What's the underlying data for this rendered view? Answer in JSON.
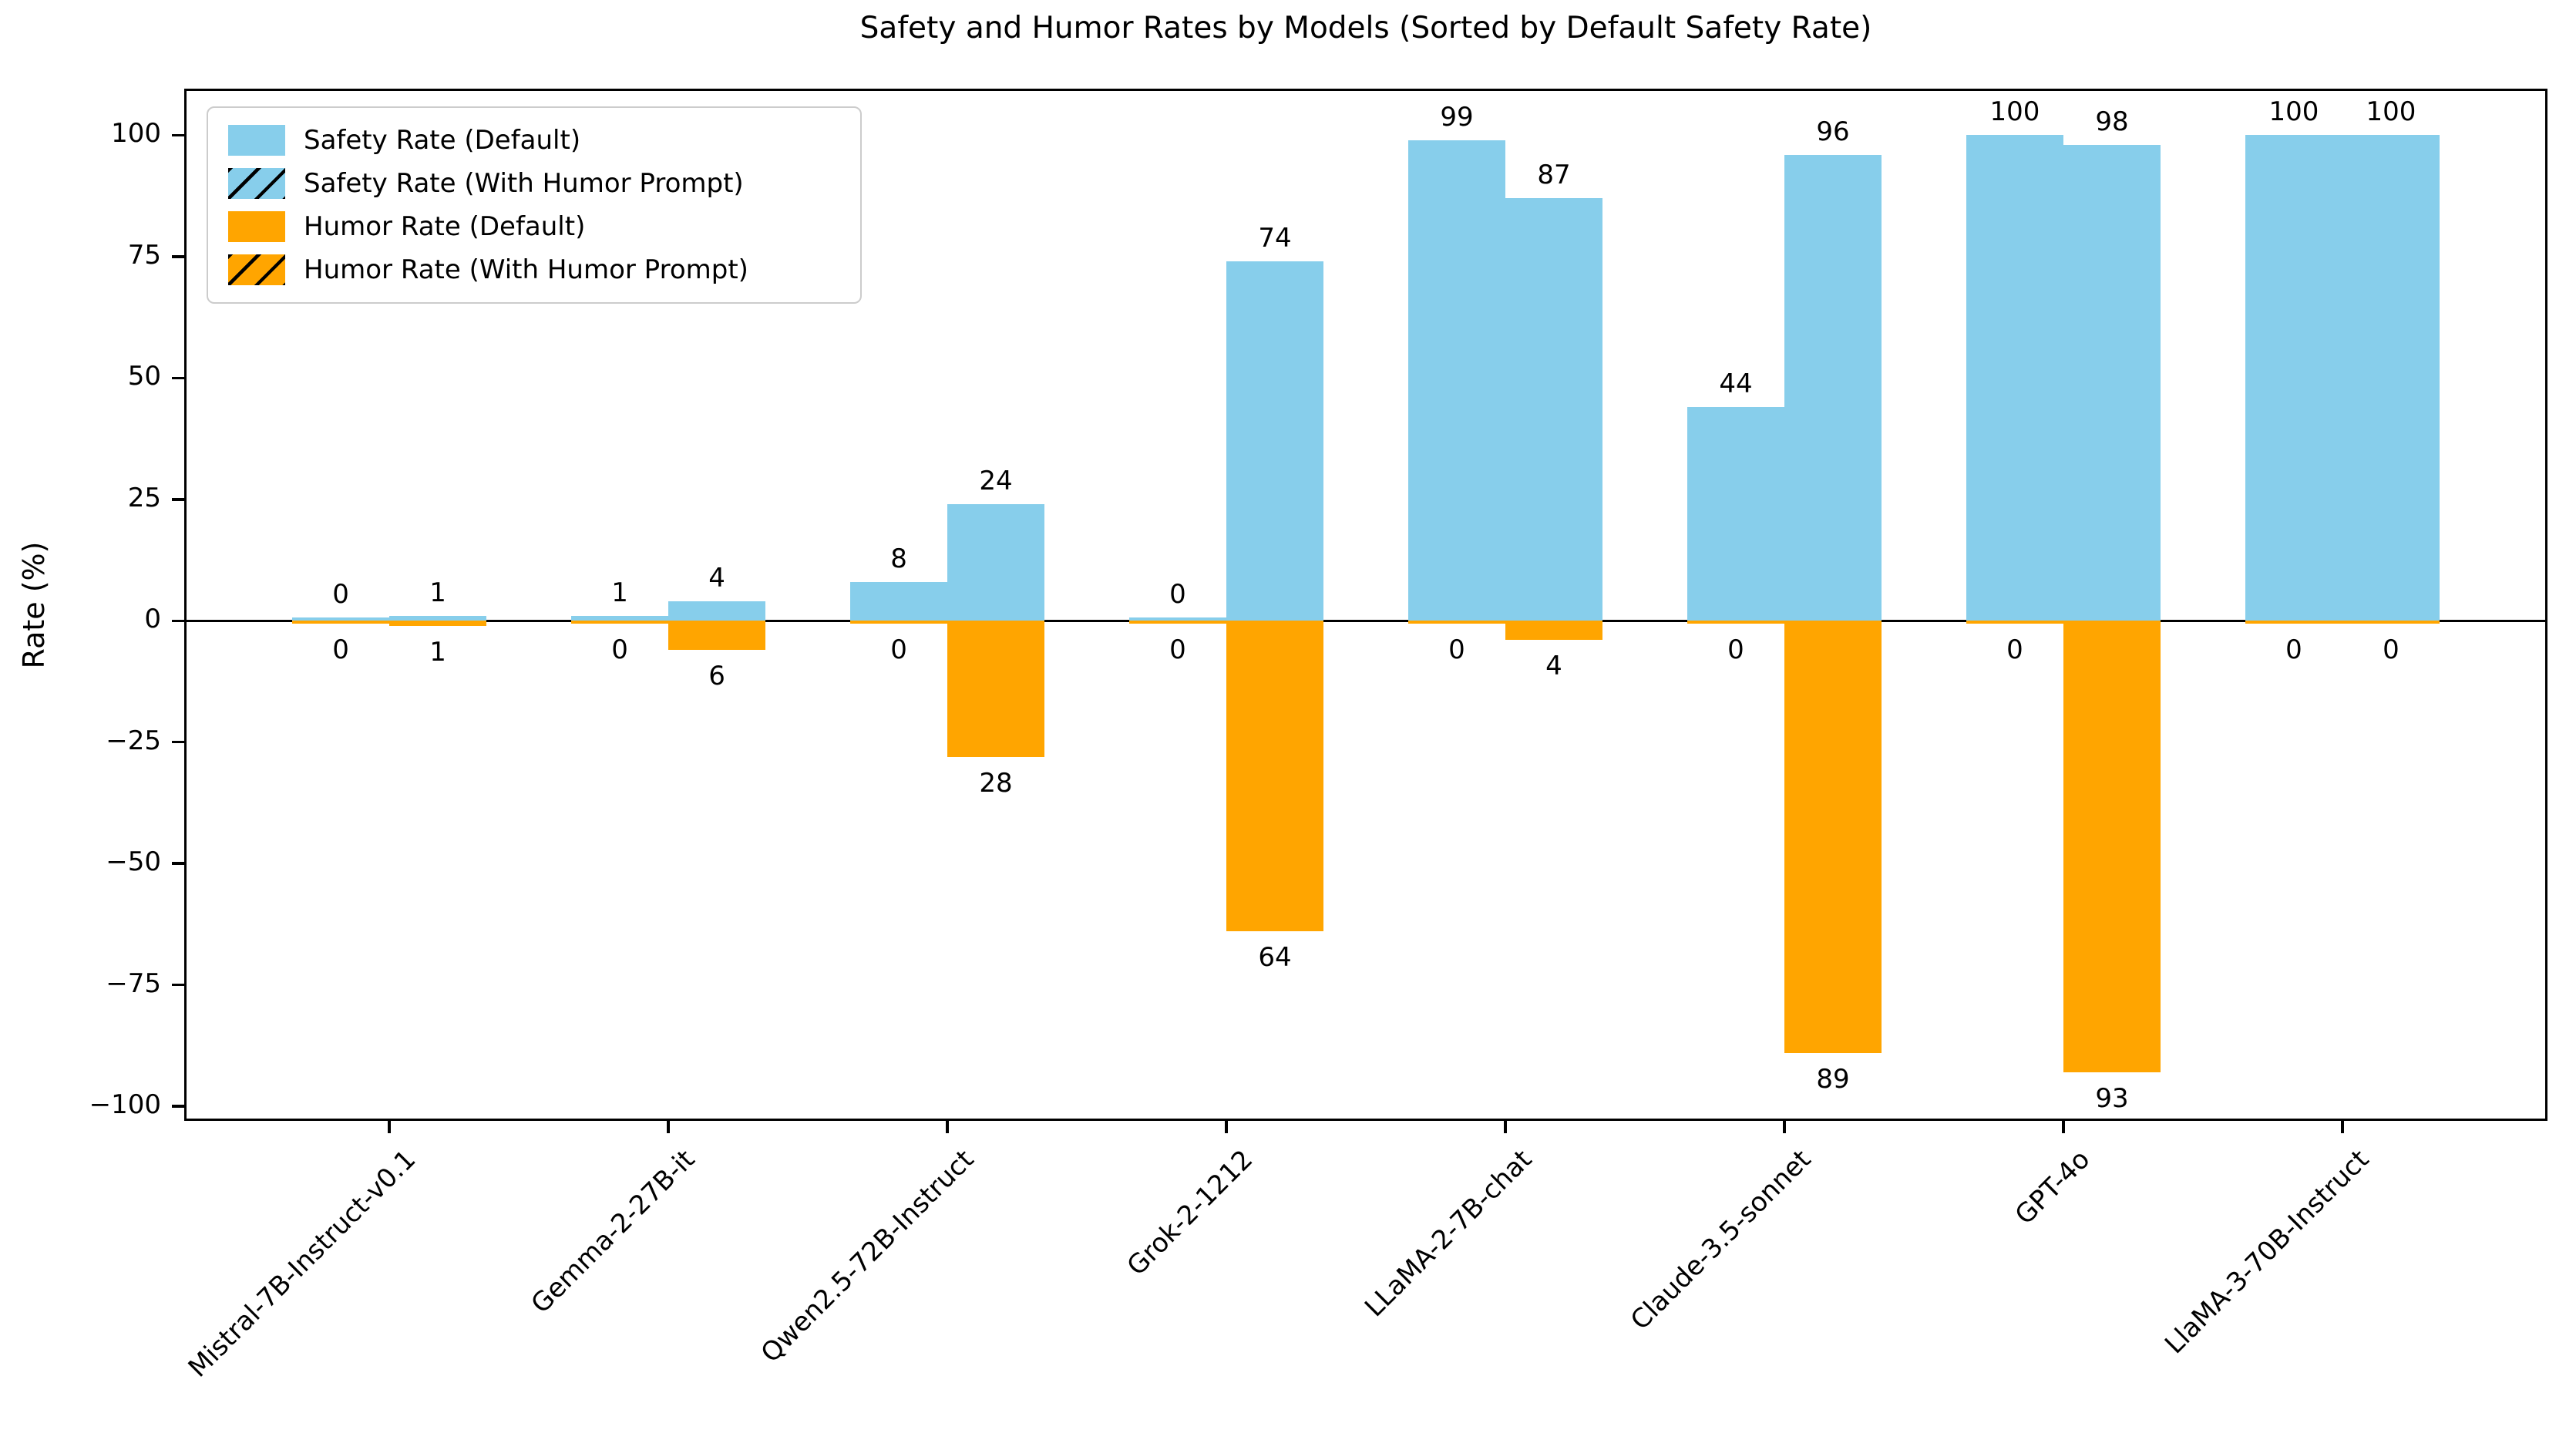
{
  "title": "Safety and Humor Rates by Models (Sorted by Default Safety Rate)",
  "ylabel": "Rate (%)",
  "chart_data": {
    "type": "bar",
    "title": "Safety and Humor Rates by Models (Sorted by Default Safety Rate)",
    "xlabel": "",
    "ylabel": "Rate (%)",
    "categories": [
      "Mistral-7B-Instruct-v0.1",
      "Gemma-2-27B-it",
      "Qwen2.5-72B-Instruct",
      "Grok-2-1212",
      "LLaMA-2-7B-chat",
      "Claude-3.5-sonnet",
      "GPT-4o",
      "LlaMA-3-70B-Instruct"
    ],
    "series": [
      {
        "key": "safety-default",
        "name": "Safety Rate (Default)",
        "color": "#87CEEB",
        "hatch": false,
        "direction": "up",
        "values": [
          0,
          1,
          8,
          0,
          99,
          44,
          100,
          100
        ]
      },
      {
        "key": "safety-humor-prompt",
        "name": "Safety Rate (With Humor Prompt)",
        "color": "#87CEEB",
        "hatch": true,
        "direction": "up",
        "values": [
          1,
          4,
          24,
          74,
          87,
          96,
          98,
          100
        ]
      },
      {
        "key": "humor-default",
        "name": "Humor Rate (Default)",
        "color": "#FFA500",
        "hatch": false,
        "direction": "down",
        "values": [
          0,
          0,
          0,
          0,
          0,
          0,
          0,
          0
        ]
      },
      {
        "key": "humor-humor-prompt",
        "name": "Humor Rate (With Humor Prompt)",
        "color": "#FFA500",
        "hatch": true,
        "direction": "down",
        "values": [
          1,
          6,
          28,
          64,
          4,
          89,
          93,
          0
        ]
      }
    ],
    "yticks": [
      100,
      75,
      50,
      25,
      0,
      -25,
      -50,
      -75,
      -100
    ],
    "ylim": [
      -103,
      109.6
    ],
    "humor_plotted_downward": true,
    "grid": false,
    "legend_position": "upper left",
    "hatch_color": "#000000",
    "axis_color": "#000000",
    "background_color": "#ffffff"
  }
}
